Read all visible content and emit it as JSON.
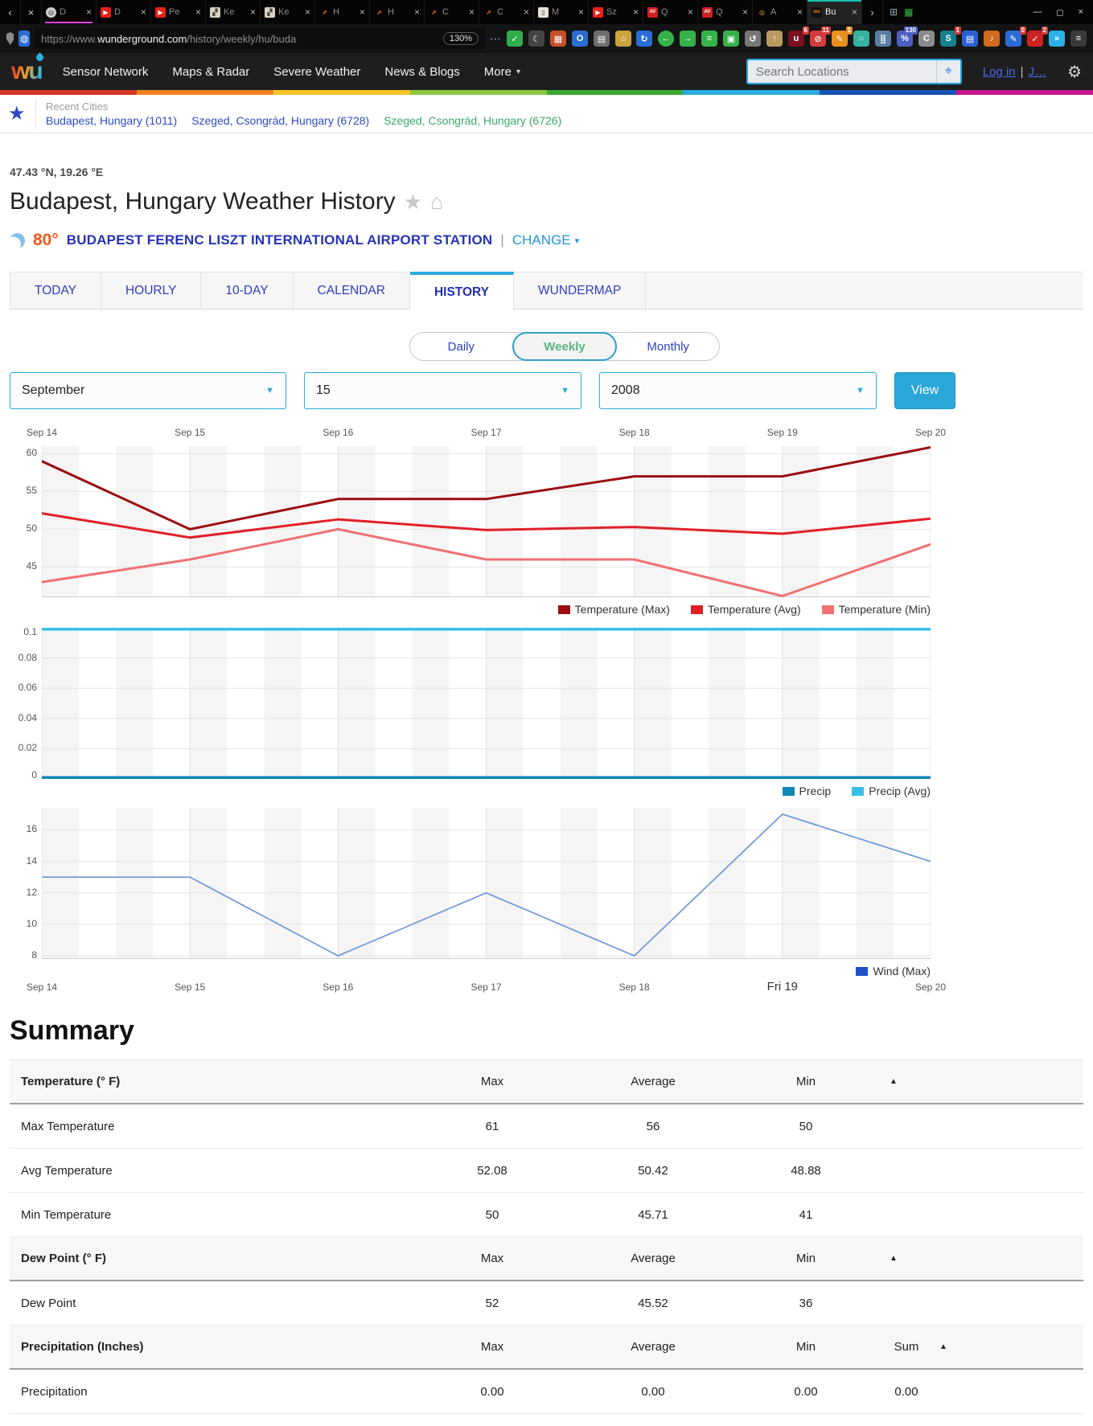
{
  "browser": {
    "scroll_left": "‹",
    "pre_close": "×",
    "overflow_arrow": "›",
    "window_controls": [
      "—",
      "◻",
      "×"
    ],
    "tabs": [
      {
        "title": "D",
        "type": "globe",
        "close": "×",
        "underline": "#e040e0"
      },
      {
        "title": "D",
        "type": "youtube",
        "close": "×"
      },
      {
        "title": "Pe",
        "type": "youtube",
        "close": "×"
      },
      {
        "title": "Ke",
        "type": "photo",
        "close": "×"
      },
      {
        "title": "Ke",
        "type": "photo",
        "close": "×"
      },
      {
        "title": "H",
        "type": "branch",
        "close": "×"
      },
      {
        "title": "H",
        "type": "branch",
        "close": "×"
      },
      {
        "title": "C",
        "type": "branch",
        "close": "×"
      },
      {
        "title": "C",
        "type": "branch",
        "close": "×"
      },
      {
        "title": "M",
        "type": "book",
        "close": "×"
      },
      {
        "title": "Sz",
        "type": "youtube",
        "close": "×"
      },
      {
        "title": "Q",
        "type": "av",
        "close": "×"
      },
      {
        "title": "Q",
        "type": "av",
        "close": "×"
      },
      {
        "title": "A",
        "type": "ring",
        "close": "×"
      },
      {
        "title": "Bu",
        "type": "wu",
        "close": "×",
        "active": true
      }
    ],
    "url_prefix": "https://www.",
    "url_domain": "wunderground.com",
    "url_path": "/history/weekly/hu/buda",
    "zoom_level": "130%",
    "overflow_dots": "⋯",
    "mid_icons": [
      {
        "name": "shield-check-icon",
        "glyph": "✓",
        "color": "#2fae4a"
      },
      {
        "name": "crescent-icon",
        "glyph": "☾",
        "color": "#444"
      },
      {
        "name": "grid-icon",
        "glyph": "▦",
        "color": "#c94f2a"
      },
      {
        "name": "o-ring-icon",
        "glyph": "O",
        "color": "#2a6dd0"
      },
      {
        "name": "doc-pair-icon",
        "glyph": "▤",
        "color": "#6e6e6e"
      },
      {
        "name": "bookmark-star-icon",
        "glyph": "☆",
        "color": "#caa33a"
      }
    ],
    "right_icons": [
      {
        "name": "sync-icon",
        "glyph": "↻",
        "color": "#2b6cd4"
      },
      {
        "name": "back-icon",
        "glyph": "←",
        "color": "#35b24a",
        "circle": true
      },
      {
        "name": "forward-icon",
        "glyph": "→",
        "color": "#35b24a"
      },
      {
        "name": "list-icon",
        "glyph": "≡",
        "color": "#35b24a"
      },
      {
        "name": "window-icon",
        "glyph": "▣",
        "color": "#35b24a"
      },
      {
        "name": "undo-icon",
        "glyph": "↺",
        "color": "#777777"
      },
      {
        "name": "upload-icon",
        "glyph": "↑",
        "color": "#b99b5f"
      },
      {
        "name": "ublock-icon",
        "glyph": "u",
        "color": "#7a1020",
        "badge": "6"
      },
      {
        "name": "blocker-icon",
        "glyph": "⊘",
        "color": "#d43b3b",
        "badge": "11"
      },
      {
        "name": "notes-icon",
        "glyph": "✎",
        "color": "#e8911e",
        "badge": "1",
        "badge_style": "amber"
      },
      {
        "name": "ghostery-icon",
        "glyph": "○",
        "color": "#35b3a0"
      },
      {
        "name": "stats-icon",
        "glyph": "⣿",
        "color": "#5b7fa6"
      },
      {
        "name": "zoom-ext-icon",
        "glyph": "%",
        "color": "#4d5fc0",
        "badge": "130",
        "badge_style": "indigo"
      },
      {
        "name": "clearurls-icon",
        "glyph": "C",
        "color": "#8a8a8a"
      },
      {
        "name": "session-icon",
        "glyph": "S",
        "color": "#157f8c",
        "badge": "1"
      },
      {
        "name": "save-icon",
        "glyph": "▤",
        "color": "#2b5fd4"
      },
      {
        "name": "speaker-icon",
        "glyph": "♪",
        "color": "#d2691e"
      },
      {
        "name": "editor-icon",
        "glyph": "✎",
        "color": "#2b6cd4",
        "badge": "0"
      },
      {
        "name": "grammar-icon",
        "glyph": "✓",
        "color": "#cc2222",
        "badge": "2"
      },
      {
        "name": "chevrons-icon",
        "glyph": "»",
        "color": "#2bb1e8"
      },
      {
        "name": "menu-icon",
        "glyph": "≡",
        "color": "#3a3a3a"
      }
    ]
  },
  "header": {
    "logo_text": "wu",
    "nav": [
      "Sensor Network",
      "Maps & Radar",
      "Severe Weather",
      "News & Blogs",
      "More"
    ],
    "more_caret": "▾",
    "search_placeholder": "Search Locations",
    "geo_icon": "⌖",
    "login": "Log in",
    "divider": "|",
    "join": "J…",
    "gear_icon": "⚙",
    "rainbow_colors": [
      "#d63426",
      "#f5821f",
      "#f7c325",
      "#8cc63f",
      "#3aaa35",
      "#29abe2",
      "#1553b7",
      "#c6168d"
    ]
  },
  "recent": {
    "label": "Recent Cities",
    "star_icon": "★",
    "cities": [
      {
        "label": "Budapest, Hungary (1011)",
        "style": "blue"
      },
      {
        "label": "Szeged, Csongrád, Hungary (6728)",
        "style": "blue"
      },
      {
        "label": "Szeged, Csongrád, Hungary (6726)",
        "style": "green"
      }
    ]
  },
  "location": {
    "coords": "47.43 °N, 19.26 °E",
    "title": "Budapest, Hungary Weather History",
    "star_icon": "★",
    "home_icon": "⌂",
    "current_temp": "80°",
    "station": "BUDAPEST FERENC LISZT INTERNATIONAL AIRPORT STATION",
    "separator": "|",
    "change_label": "CHANGE",
    "change_caret": "▾"
  },
  "site_tabs": {
    "items": [
      "TODAY",
      "HOURLY",
      "10-DAY",
      "CALENDAR",
      "HISTORY",
      "WUNDERMAP"
    ],
    "active": "HISTORY"
  },
  "period_toggle": {
    "items": [
      "Daily",
      "Weekly",
      "Monthly"
    ],
    "active": "Weekly"
  },
  "date_selects": {
    "month": "September",
    "day": "15",
    "year": "2008",
    "caret": "▼",
    "view_label": "View"
  },
  "chart_data": [
    {
      "type": "line",
      "name": "temperature",
      "x_labels": [
        "Sep 14",
        "Sep 15",
        "Sep 16",
        "Sep 17",
        "Sep 18",
        "Sep 19",
        "Sep 20"
      ],
      "x_labels_position": "top",
      "ylim": [
        41,
        61
      ],
      "yticks": [
        45,
        50,
        55,
        60
      ],
      "grid": true,
      "legend_position": "bottom-right",
      "series": [
        {
          "name": "Temperature (Max)",
          "color": "#9b0d10",
          "width": 3,
          "values": [
            59,
            50,
            54,
            54,
            57,
            57,
            61
          ]
        },
        {
          "name": "Temperature (Avg)",
          "color": "#e12026",
          "width": 3,
          "values": [
            52.1,
            48.9,
            51.3,
            49.9,
            50.3,
            49.4,
            51.4
          ]
        },
        {
          "name": "Temperature (Min)",
          "color": "#ef7173",
          "width": 3,
          "values": [
            43,
            46,
            50,
            46,
            46,
            41,
            48
          ]
        }
      ]
    },
    {
      "type": "line",
      "name": "precipitation",
      "ylim": [
        0,
        0.1
      ],
      "yticks": [
        0,
        0.02,
        0.04,
        0.06,
        0.08,
        0.1
      ],
      "grid": true,
      "legend_position": "bottom-right",
      "series": [
        {
          "name": "Precip",
          "color": "#1187b8",
          "width": 3.5,
          "values": [
            0,
            0,
            0,
            0,
            0,
            0,
            0
          ]
        },
        {
          "name": "Precip (Avg)",
          "color": "#38bfe8",
          "width": 3.5,
          "values": [
            0.1,
            0.1,
            0.1,
            0.1,
            0.1,
            0.1,
            0.1
          ]
        }
      ]
    },
    {
      "type": "line",
      "name": "wind",
      "x_labels": [
        "Sep 14",
        "Sep 15",
        "Sep 16",
        "Sep 17",
        "Sep 18",
        "Fri 19",
        "Sep 20"
      ],
      "x_labels_position": "bottom",
      "emphasized_x_label": "Fri 19",
      "ylim": [
        7.8,
        17.4
      ],
      "yticks": [
        8,
        10,
        12,
        14,
        16
      ],
      "grid": true,
      "legend_position": "bottom-right",
      "series": [
        {
          "name": "Wind (Max)",
          "color": "#6f97d8",
          "legend_color": "#1d4fc8",
          "width": 1.7,
          "values": [
            13,
            13,
            8,
            12,
            8,
            17,
            14
          ]
        }
      ]
    }
  ],
  "summary": {
    "title": "Summary",
    "sort_icon": "▲",
    "sections": [
      {
        "header": "Temperature (° F)",
        "columns": [
          "Max",
          "Average",
          "Min"
        ],
        "rows": [
          {
            "label": "Max Temperature",
            "values": [
              "61",
              "56",
              "50"
            ]
          },
          {
            "label": "Avg Temperature",
            "values": [
              "52.08",
              "50.42",
              "48.88"
            ]
          },
          {
            "label": "Min Temperature",
            "values": [
              "50",
              "45.71",
              "41"
            ]
          }
        ]
      },
      {
        "header": "Dew Point (° F)",
        "columns": [
          "Max",
          "Average",
          "Min"
        ],
        "rows": [
          {
            "label": "Dew Point",
            "values": [
              "52",
              "45.52",
              "36"
            ]
          }
        ]
      },
      {
        "header": "Precipitation (Inches)",
        "columns": [
          "Max",
          "Average",
          "Min",
          "Sum"
        ],
        "rows": [
          {
            "label": "Precipitation",
            "values": [
              "0.00",
              "0.00",
              "0.00",
              "0.00"
            ]
          }
        ]
      }
    ]
  }
}
